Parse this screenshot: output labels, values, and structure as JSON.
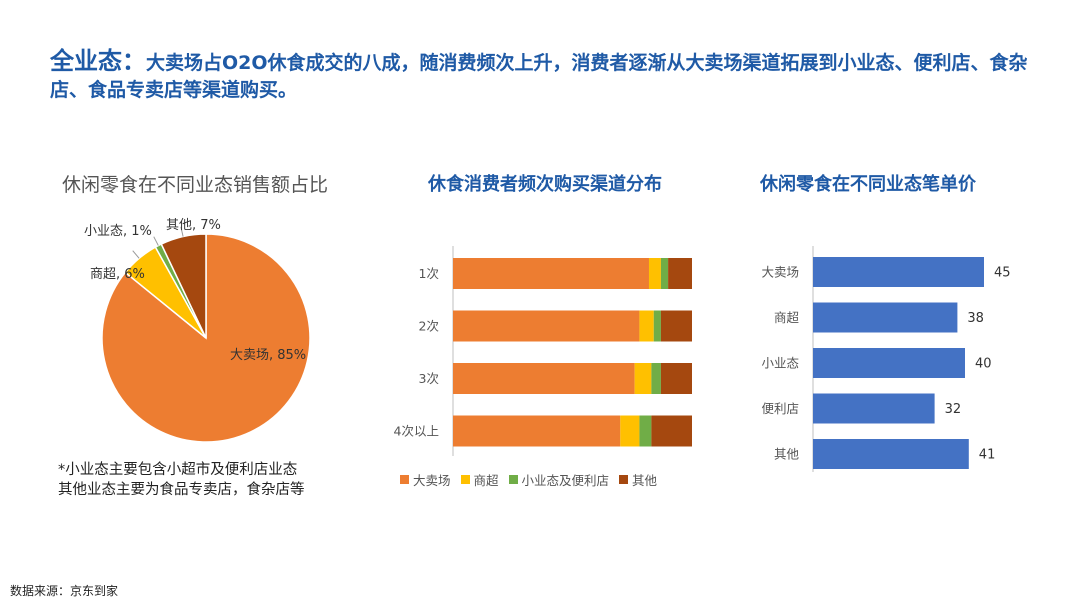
{
  "headline": {
    "lead": "全业态：",
    "text": "大卖场占O2O休食成交的八成，随消费频次上升，消费者逐渐从大卖场渠道拓展到小业态、便利店、食杂店、食品专卖店等渠道购买。"
  },
  "colors": {
    "hypermarket": "#ed7d31",
    "supermarket": "#ffc000",
    "small_format": "#70ad47",
    "other": "#a5480f",
    "bar_blue": "#4472c4"
  },
  "note": {
    "line1": "*小业态主要包含小超市及便利店业态",
    "line2": "其他业态主要为食品专卖店，食杂店等"
  },
  "source": "数据来源：京东到家",
  "chart_data": [
    {
      "type": "pie",
      "title": "休闲零食在不同业态销售额占比",
      "slices": [
        {
          "label": "大卖场, 85%",
          "value": 85
        },
        {
          "label": "商超, 6%",
          "value": 6
        },
        {
          "label": "小业态, 1%",
          "value": 1
        },
        {
          "label": "其他, 7%",
          "value": 7
        }
      ]
    },
    {
      "type": "bar",
      "orientation": "horizontal",
      "stacked": true,
      "title": "休食消费者频次购买渠道分布",
      "categories": [
        "1次",
        "2次",
        "3次",
        "4次以上"
      ],
      "series": [
        {
          "name": "大卖场",
          "values": [
            82,
            78,
            76,
            70
          ]
        },
        {
          "name": "商超",
          "values": [
            5,
            6,
            7,
            8
          ]
        },
        {
          "name": "小业态及便利店",
          "values": [
            3,
            3,
            4,
            5
          ]
        },
        {
          "name": "其他",
          "values": [
            10,
            13,
            13,
            17
          ]
        }
      ],
      "xlim": [
        0,
        100
      ],
      "legend_position": "bottom"
    },
    {
      "type": "bar",
      "orientation": "horizontal",
      "title": "休闲零食在不同业态笔单价",
      "categories": [
        "大卖场",
        "商超",
        "小业态",
        "便利店",
        "其他"
      ],
      "values": [
        45,
        38,
        40,
        32,
        41
      ],
      "xlim": [
        0,
        65
      ]
    }
  ]
}
